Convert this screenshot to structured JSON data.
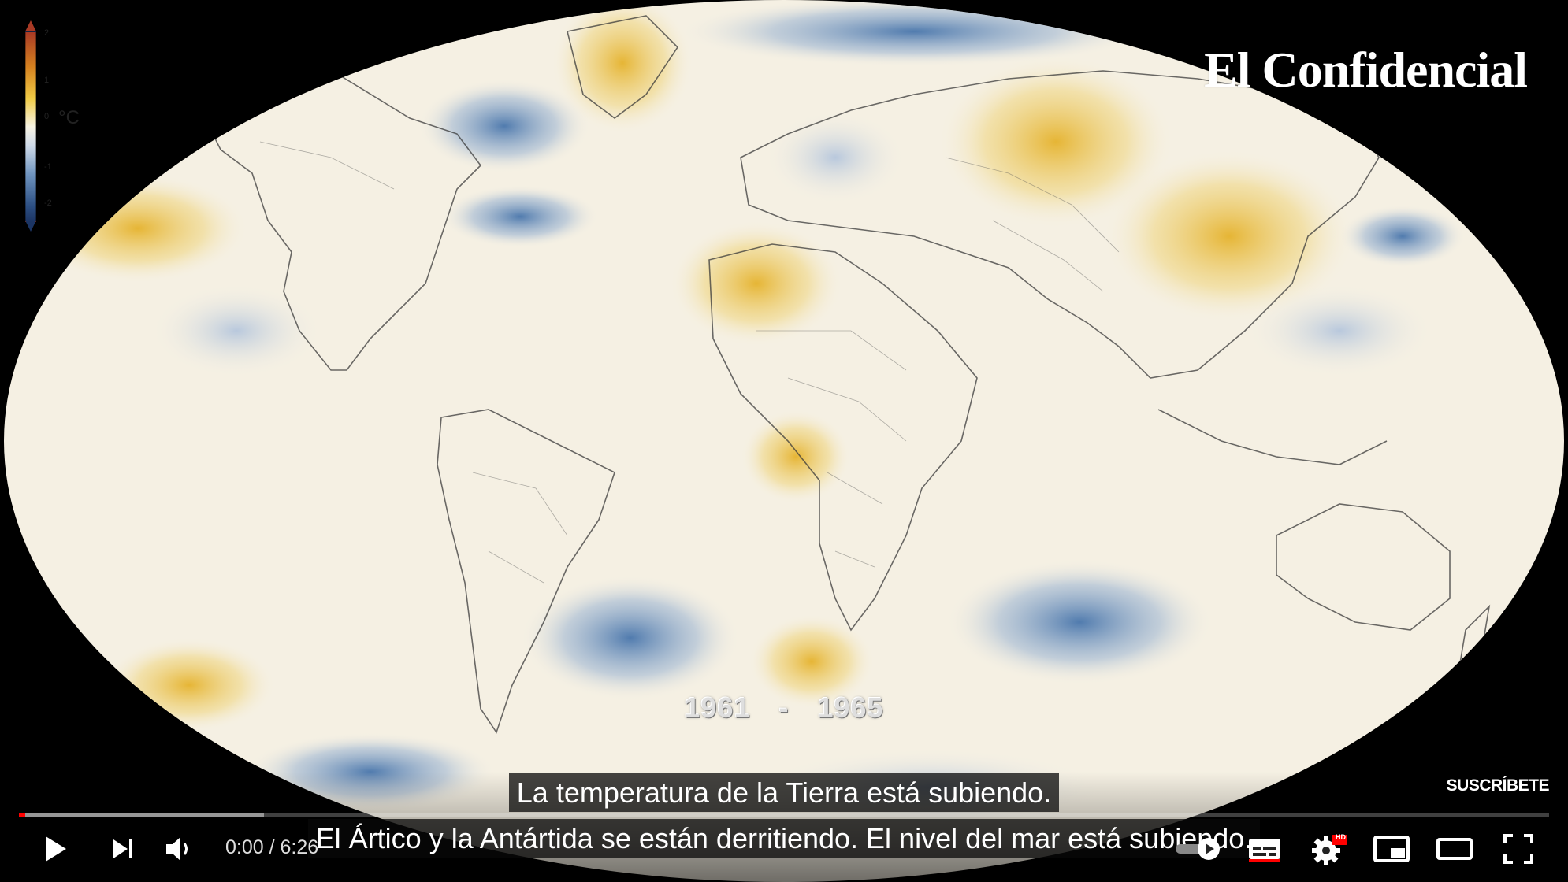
{
  "video": {
    "brand": "El Confidencial",
    "legend": {
      "ticks": [
        "2",
        "1",
        "0",
        "-1",
        "-2"
      ],
      "unit": "°C"
    },
    "year_range": {
      "start": "1961",
      "sep": "-",
      "end": "1965"
    },
    "subscribe_label": "SUSCRÍBETE",
    "captions": [
      "La temperatura de la Tierra está subiendo.",
      "El Ártico  y la Antártida se están derritiendo. El nivel del mar está subiendo."
    ]
  },
  "player": {
    "time_display": "0:00 / 6:26",
    "progress": {
      "played_fraction": 0.0,
      "loaded_fraction": 0.16
    },
    "icons": [
      "play-icon",
      "next-icon",
      "volume-icon",
      "autoplay-toggle-icon",
      "subtitles-icon",
      "settings-icon",
      "miniplayer-icon",
      "theater-mode-icon",
      "fullscreen-icon"
    ],
    "hd_badge": "HD"
  },
  "colors": {
    "warm": "#e9b935",
    "cool": "#3e6ea8",
    "neutral": "#f6f1e4",
    "progress_red": "#ff0000"
  }
}
